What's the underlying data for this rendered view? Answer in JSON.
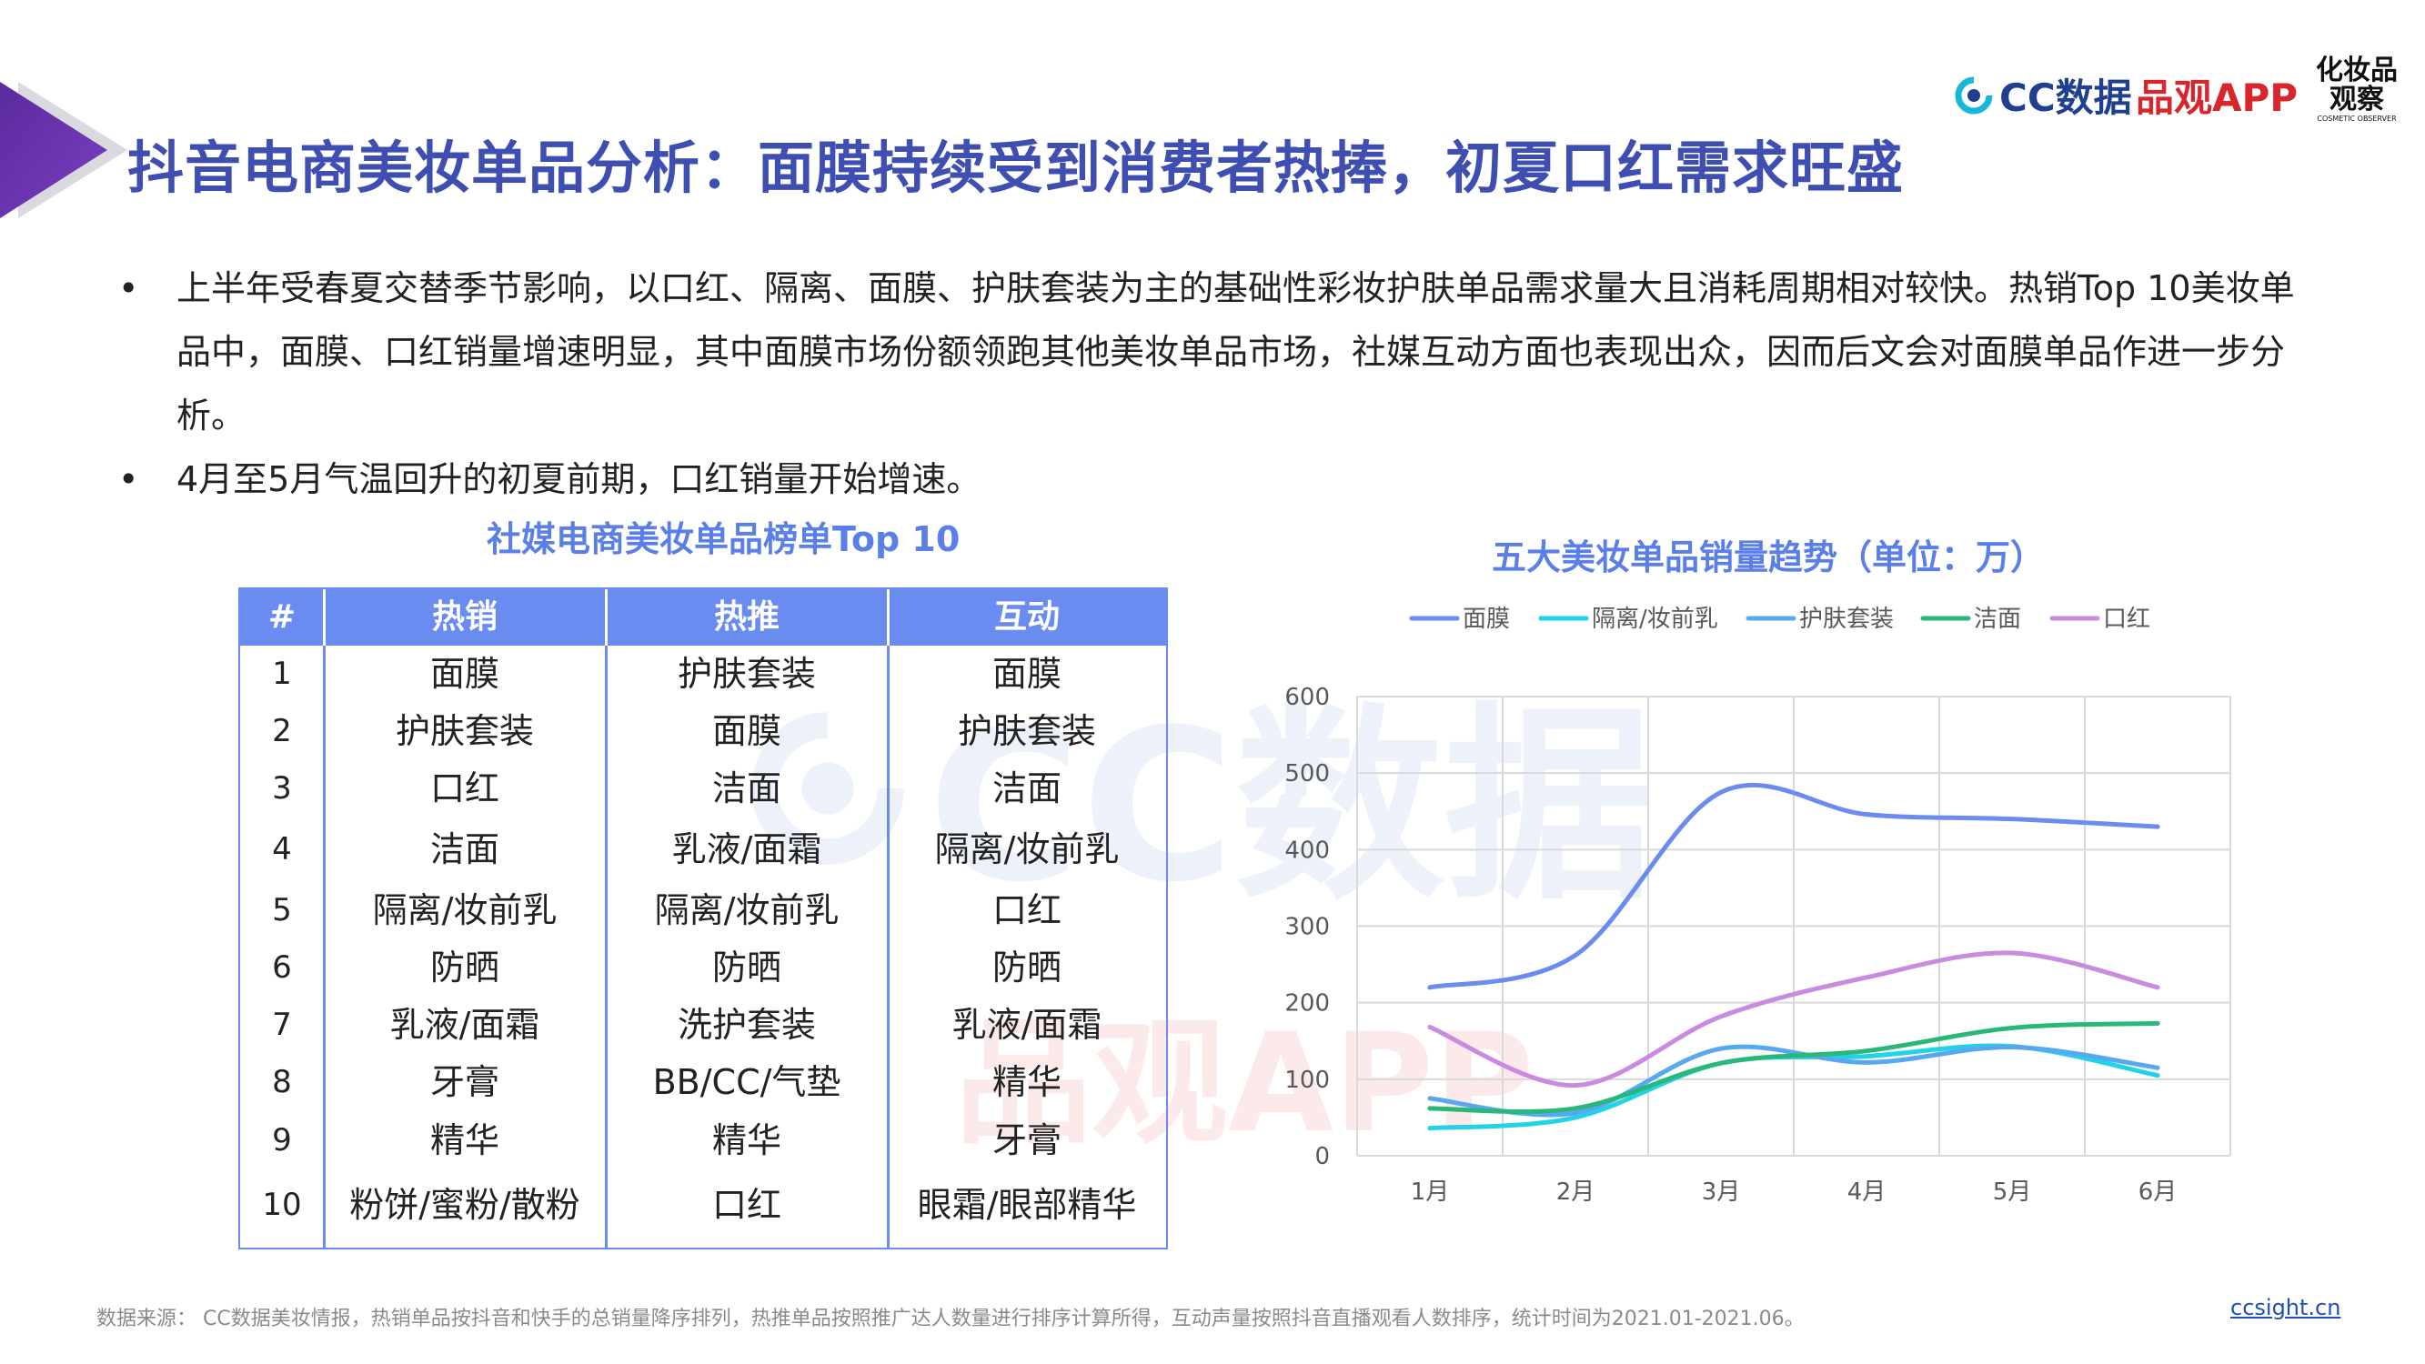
{
  "header": {
    "title": "抖音电商美妆单品分析：面膜持续受到消费者热捧，初夏口红需求旺盛",
    "logos": {
      "cc_data": "CC数据",
      "pinguan": "品观APP",
      "cosmetic_observer_cn": "化妆品观察",
      "cosmetic_observer_en": "COSMETIC OBSERVER"
    }
  },
  "bullets": [
    "上半年受春夏交替季节影响，以口红、隔离、面膜、护肤套装为主的基础性彩妆护肤单品需求量大且消耗周期相对较快。热销Top 10美妆单品中，面膜、口红销量增速明显，其中面膜市场份额领跑其他美妆单品市场，社媒互动方面也表现出众，因而后文会对面膜单品作进一步分析。",
    "4月至5月气温回升的初夏前期，口红销量开始增速。"
  ],
  "bullet_symbol": "•",
  "table": {
    "title": "社媒电商美妆单品榜单Top 10",
    "headers": [
      "#",
      "热销",
      "热推",
      "互动"
    ],
    "rows": [
      [
        "1",
        "面膜",
        "护肤套装",
        "面膜"
      ],
      [
        "2",
        "护肤套装",
        "面膜",
        "护肤套装"
      ],
      [
        "3",
        "口红",
        "洁面",
        "洁面"
      ],
      [
        "4",
        "洁面",
        "乳液/面霜",
        "隔离/妆前乳"
      ],
      [
        "5",
        "隔离/妆前乳",
        "隔离/妆前乳",
        "口红"
      ],
      [
        "6",
        "防晒",
        "防晒",
        "防晒"
      ],
      [
        "7",
        "乳液/面霜",
        "洗护套装",
        "乳液/面霜"
      ],
      [
        "8",
        "牙膏",
        "BB/CC/气垫",
        "精华"
      ],
      [
        "9",
        "精华",
        "精华",
        "牙膏"
      ],
      [
        "10",
        "粉饼/蜜粉/散粉",
        "口红",
        "眼霜/眼部精华"
      ]
    ]
  },
  "watermarks": {
    "cc": "CC数据",
    "pinguan": "品观APP"
  },
  "chart_data": {
    "type": "line",
    "title": "五大美妆单品销量趋势（单位：万）",
    "categories": [
      "1月",
      "2月",
      "3月",
      "4月",
      "5月",
      "6月"
    ],
    "ylim": [
      0,
      600
    ],
    "yticks": [
      0,
      100,
      200,
      300,
      400,
      500,
      600
    ],
    "grid": true,
    "legend_position": "top",
    "series": [
      {
        "name": "面膜",
        "color": "#6a8cf0",
        "values": [
          220,
          262,
          475,
          446,
          440,
          430
        ]
      },
      {
        "name": "隔离/妆前乳",
        "color": "#22d3e6",
        "values": [
          36,
          50,
          121,
          130,
          143,
          105
        ]
      },
      {
        "name": "护肤套装",
        "color": "#58a8f0",
        "values": [
          75,
          56,
          140,
          122,
          142,
          115
        ]
      },
      {
        "name": "洁面",
        "color": "#2ab87a",
        "values": [
          62,
          62,
          121,
          137,
          167,
          173
        ]
      },
      {
        "name": "口红",
        "color": "#c98ae0",
        "values": [
          168,
          92,
          182,
          233,
          265,
          220
        ]
      }
    ]
  },
  "footer": {
    "source": "数据来源： CC数据美妆情报，热销单品按抖音和快手的总销量降序排列，热推单品按照推广达人数量进行排序计算所得，互动声量按照抖音直播观看人数排序，统计时间为2021.01-2021.06。",
    "site": "ccsight.cn"
  }
}
